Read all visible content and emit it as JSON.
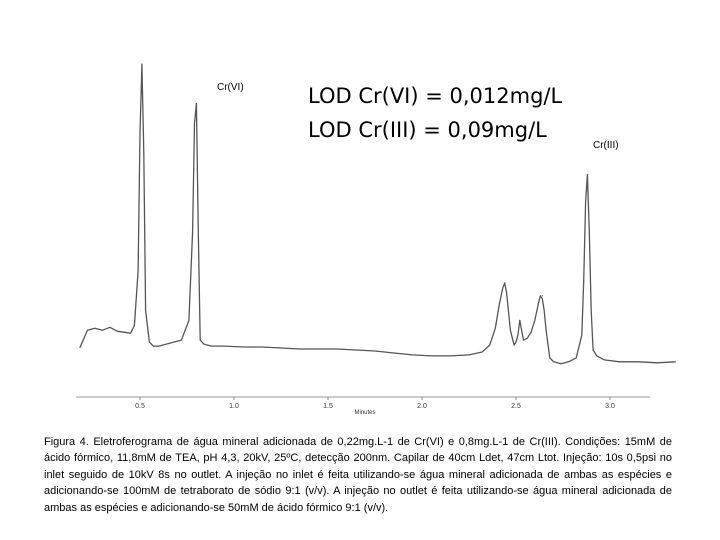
{
  "chart_data": {
    "type": "line",
    "title": "",
    "xlabel": "Minutes",
    "ylabel": "",
    "xlim": [
      0.18,
      3.35
    ],
    "ylim": [
      0,
      300
    ],
    "x_ticks": [
      "0.5",
      "1.0",
      "1.5",
      "2.0",
      "2.5",
      "3.0"
    ],
    "x_tick_values": [
      0.5,
      1.0,
      1.5,
      2.0,
      2.5,
      3.0
    ],
    "grid": false,
    "annotations": {
      "lod_vi": "LOD Cr(VI) = 0,012mg/L",
      "lod_iii": "LOD Cr(III) = 0,09mg/L"
    },
    "peaks": [
      {
        "label": "Cr(VI)",
        "x": 0.51,
        "y": 290
      },
      {
        "label": "",
        "x": 0.8,
        "y": 250
      },
      {
        "label": "",
        "x": 2.44,
        "y": 68
      },
      {
        "label": "",
        "x": 2.52,
        "y": 30
      },
      {
        "label": "",
        "x": 2.64,
        "y": 55
      },
      {
        "label": "Cr(III)",
        "x": 2.88,
        "y": 178
      }
    ],
    "series": [
      {
        "x": [
          0.18,
          0.22,
          0.26,
          0.3,
          0.34,
          0.38,
          0.42,
          0.45,
          0.47,
          0.49,
          0.5,
          0.51,
          0.52,
          0.53,
          0.55,
          0.57,
          0.6,
          0.64,
          0.68,
          0.72,
          0.76,
          0.78,
          0.79,
          0.8,
          0.81,
          0.82,
          0.84,
          0.88,
          0.95,
          1.05,
          1.15,
          1.25,
          1.35,
          1.45,
          1.55,
          1.65,
          1.75,
          1.85,
          1.95,
          2.05,
          2.15,
          2.25,
          2.32,
          2.36,
          2.39,
          2.41,
          2.43,
          2.44,
          2.45,
          2.47,
          2.49,
          2.5,
          2.51,
          2.52,
          2.53,
          2.54,
          2.56,
          2.58,
          2.6,
          2.62,
          2.63,
          2.64,
          2.65,
          2.66,
          2.68,
          2.7,
          2.74,
          2.78,
          2.82,
          2.85,
          2.86,
          2.87,
          2.88,
          2.89,
          2.9,
          2.91,
          2.93,
          2.97,
          3.05,
          3.15,
          3.25,
          3.35
        ],
        "values": [
          2,
          20,
          22,
          20,
          23,
          19,
          18,
          17,
          25,
          80,
          220,
          290,
          200,
          40,
          8,
          4,
          4,
          6,
          8,
          10,
          30,
          120,
          230,
          250,
          120,
          10,
          6,
          4,
          4,
          3,
          3,
          2,
          1,
          1,
          1,
          0,
          -1,
          -3,
          -5,
          -6,
          -6,
          -5,
          -2,
          5,
          22,
          45,
          63,
          68,
          58,
          20,
          5,
          8,
          15,
          30,
          20,
          10,
          12,
          18,
          30,
          48,
          55,
          52,
          40,
          20,
          -8,
          -12,
          -14,
          -12,
          -8,
          15,
          70,
          150,
          178,
          120,
          40,
          0,
          -6,
          -10,
          -12,
          -12,
          -13,
          -12
        ]
      }
    ]
  },
  "peak_labels": {
    "cr_vi": "Cr(VI)",
    "cr_iii": "Cr(III)"
  },
  "caption": "Figura 4. Eletroferograma de água mineral adicionada de 0,22mg.L-1 de Cr(VI) e 0,8mg.L-1 de Cr(III). Condições: 15mM de ácido fórmico, 11,8mM de TEA, pH 4,3, 20kV, 25ºC, detecção 200nm. Capilar de 40cm Ldet, 47cm Ltot. Injeção: 10s 0,5psi no inlet seguido de 10kV 8s no outlet. A injeção no inlet é feita utilizando-se água mineral adicionada de ambas as espécies e adicionando-se 100mM de tetraborato de sódio 9:1 (v/v). A injeção no outlet é feita utilizando-se água mineral adicionada de ambas as espécies e adicionando-se 50mM de ácido fórmico 9:1 (v/v)."
}
